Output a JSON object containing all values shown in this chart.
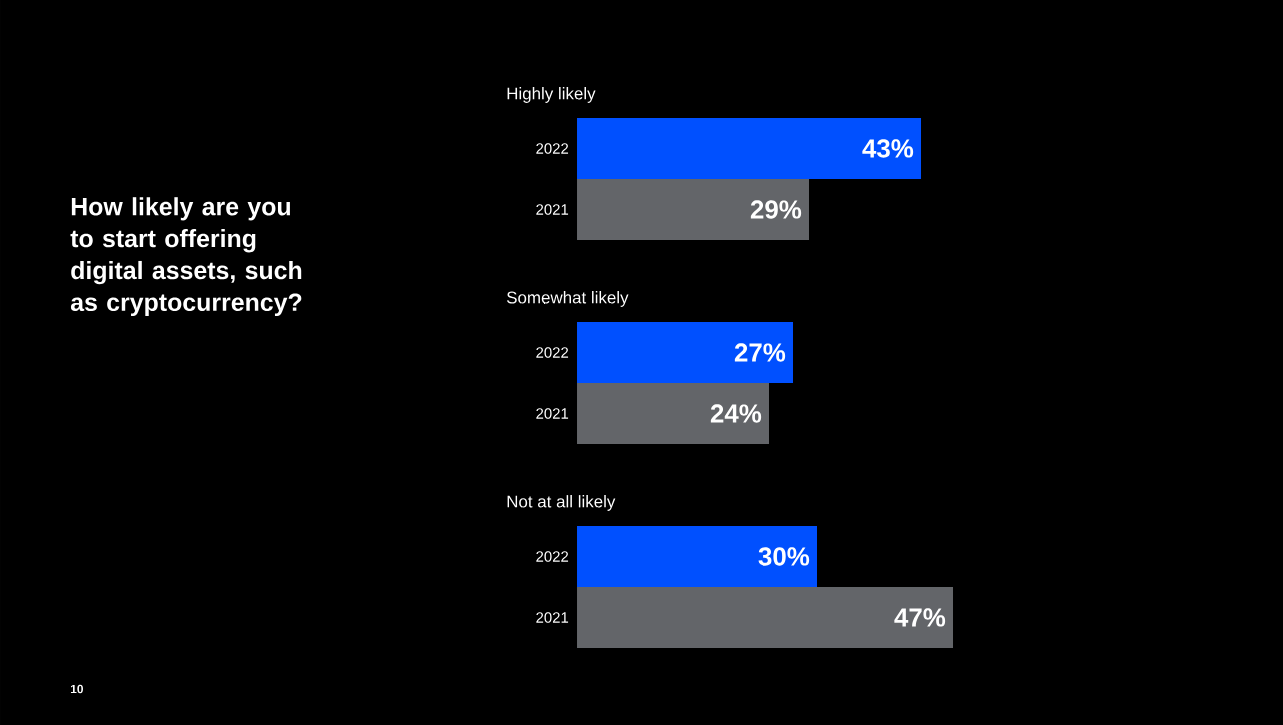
{
  "chart_data": {
    "type": "bar",
    "orientation": "horizontal",
    "title": "How likely are you to start offering digital assets, such as cryptocurrency?",
    "categories": [
      "Highly likely",
      "Somewhat likely",
      "Not at all likely"
    ],
    "series": [
      {
        "name": "2022",
        "color": "#0050ff",
        "values": [
          43,
          27,
          30
        ],
        "value_labels": [
          "43%",
          "27%",
          "30%"
        ]
      },
      {
        "name": "2021",
        "color": "#636569",
        "values": [
          29,
          24,
          47
        ],
        "value_labels": [
          "29%",
          "24%",
          "47%"
        ]
      }
    ],
    "annotations": [
      "10"
    ]
  }
}
